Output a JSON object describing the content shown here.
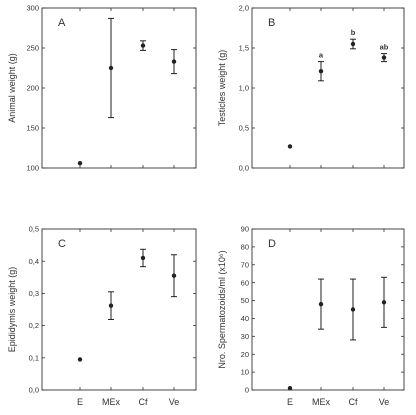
{
  "figure": {
    "background": "#ffffff",
    "axis_color": "#333333",
    "mark_color": "#222222"
  },
  "chart_data": [
    {
      "type": "scatter",
      "panel_label": "A",
      "ylabel": "Animal weight (g)",
      "ylim": [
        100,
        300
      ],
      "yticks": [
        100,
        150,
        200,
        250,
        300
      ],
      "ytick_labels": [
        "100",
        "150",
        "200",
        "250",
        "300"
      ],
      "categories": [
        "E",
        "MEx",
        "Cf",
        "Ve"
      ],
      "category_labels_shown": false,
      "series": [
        {
          "values": [
            106,
            225,
            253,
            233
          ],
          "errors": [
            1,
            62,
            6,
            15
          ]
        }
      ],
      "grid": false,
      "legend": "none"
    },
    {
      "type": "scatter",
      "panel_label": "B",
      "ylabel": "Testicles weight (g)",
      "ylim": [
        0,
        2
      ],
      "yticks": [
        0,
        0.5,
        1,
        1.5,
        2
      ],
      "ytick_labels": [
        "0,0",
        "0,5",
        "1,0",
        "1,5",
        "2,0"
      ],
      "categories": [
        "E",
        "MEx",
        "Cf",
        "Ve"
      ],
      "category_labels_shown": false,
      "series": [
        {
          "values": [
            0.27,
            1.21,
            1.55,
            1.38
          ],
          "errors": [
            0.01,
            0.12,
            0.06,
            0.05
          ]
        }
      ],
      "annotations": [
        "",
        "a",
        "b",
        "ab"
      ],
      "grid": false,
      "legend": "none"
    },
    {
      "type": "scatter",
      "panel_label": "C",
      "ylabel": "Epididymis weight (g)",
      "ylim": [
        0,
        0.5
      ],
      "yticks": [
        0,
        0.1,
        0.2,
        0.3,
        0.4,
        0.5
      ],
      "ytick_labels": [
        "0,0",
        "0,1",
        "0,2",
        "0,3",
        "0,4",
        "0,5"
      ],
      "categories": [
        "E",
        "MEx",
        "Cf",
        "Ve"
      ],
      "category_labels_shown": true,
      "series": [
        {
          "values": [
            0.095,
            0.262,
            0.41,
            0.355
          ],
          "errors": [
            0.002,
            0.043,
            0.027,
            0.065
          ]
        }
      ],
      "grid": false,
      "legend": "none"
    },
    {
      "type": "scatter",
      "panel_label": "D",
      "ylabel": "Nro. Spermatozoids/ml (x10⁶)",
      "ylim": [
        0,
        90
      ],
      "yticks": [
        0,
        10,
        20,
        30,
        40,
        50,
        60,
        70,
        80,
        90
      ],
      "ytick_labels": [
        "0",
        "10",
        "20",
        "30",
        "40",
        "50",
        "60",
        "70",
        "80",
        "90"
      ],
      "categories": [
        "E",
        "MEx",
        "Cf",
        "Ve"
      ],
      "category_labels_shown": true,
      "series": [
        {
          "values": [
            1,
            48,
            45,
            49
          ],
          "errors": [
            0.5,
            14,
            17,
            14
          ]
        }
      ],
      "grid": false,
      "legend": "none"
    }
  ]
}
